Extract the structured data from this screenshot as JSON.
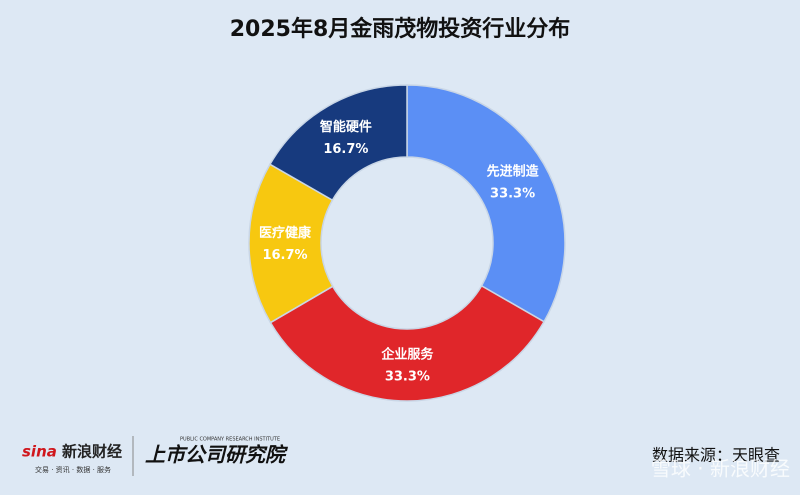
{
  "chart_data": {
    "type": "pie",
    "title": "2025年8月金雨茂物投资行业分布",
    "categories": [
      "先进制造",
      "企业服务",
      "医疗健康",
      "智能硬件"
    ],
    "values": [
      33.3,
      33.3,
      16.7,
      16.7
    ],
    "value_labels": [
      "33.3%",
      "33.3%",
      "16.7%",
      "16.7%"
    ],
    "colors": [
      "#5b8ff5",
      "#e0262a",
      "#f7c810",
      "#173a7e"
    ]
  },
  "footer": {
    "brand": "新浪财经",
    "brand_logo": "sina",
    "brand_tagline": "交易 · 资讯 · 数据 · 服务",
    "institute": "上市公司研究院",
    "institute_en": "PUBLIC COMPANY RESEARCH INSTITUTE",
    "source": "数据来源：天眼查",
    "watermark": "雪球 · 新浪财经"
  }
}
